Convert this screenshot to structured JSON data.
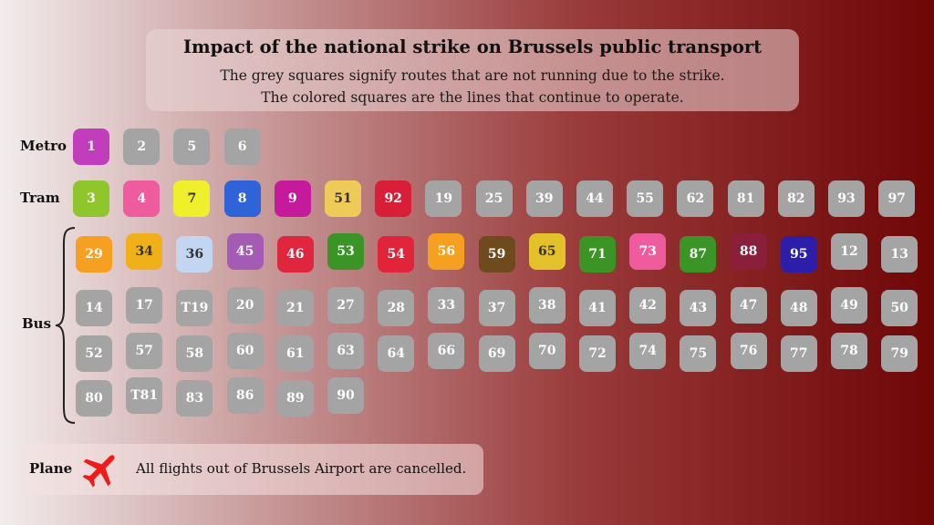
{
  "header": {
    "title": "Impact of the national strike on Brussels public transport",
    "subtitle_1": "The grey squares signify routes that are not running due to the strike.",
    "subtitle_2": "The colored squares are the lines that continue to operate."
  },
  "labels": {
    "metro": "Metro",
    "tram": "Tram",
    "bus": "Bus"
  },
  "colors": {
    "not_running": "#a4a4a4"
  },
  "metro": [
    {
      "line": "1",
      "status": "running",
      "color": "#c13dbb"
    },
    {
      "line": "2",
      "status": "not_running"
    },
    {
      "line": "5",
      "status": "not_running"
    },
    {
      "line": "6",
      "status": "not_running"
    }
  ],
  "tram": [
    {
      "line": "3",
      "status": "running",
      "color": "#8ec62b"
    },
    {
      "line": "4",
      "status": "running",
      "color": "#ee5c9e"
    },
    {
      "line": "7",
      "status": "running",
      "color": "#f0ef2b",
      "text": "dark"
    },
    {
      "line": "8",
      "status": "running",
      "color": "#2f63d8"
    },
    {
      "line": "9",
      "status": "running",
      "color": "#c51a9b"
    },
    {
      "line": "51",
      "status": "running",
      "color": "#eecb58",
      "text": "dark"
    },
    {
      "line": "92",
      "status": "running",
      "color": "#d81f37"
    },
    {
      "line": "19",
      "status": "not_running"
    },
    {
      "line": "25",
      "status": "not_running"
    },
    {
      "line": "39",
      "status": "not_running"
    },
    {
      "line": "44",
      "status": "not_running"
    },
    {
      "line": "55",
      "status": "not_running"
    },
    {
      "line": "62",
      "status": "not_running"
    },
    {
      "line": "81",
      "status": "not_running"
    },
    {
      "line": "82",
      "status": "not_running"
    },
    {
      "line": "93",
      "status": "not_running"
    },
    {
      "line": "97",
      "status": "not_running"
    }
  ],
  "bus": [
    {
      "line": "29",
      "status": "running",
      "color": "#f5a021"
    },
    {
      "line": "34",
      "status": "running",
      "color": "#f0b01a",
      "text": "dark"
    },
    {
      "line": "36",
      "status": "running",
      "color": "#c2d6f2",
      "text": "dark"
    },
    {
      "line": "45",
      "status": "running",
      "color": "#a35bb3"
    },
    {
      "line": "46",
      "status": "running",
      "color": "#e0263c"
    },
    {
      "line": "53",
      "status": "running",
      "color": "#3a9426"
    },
    {
      "line": "54",
      "status": "running",
      "color": "#e0243a"
    },
    {
      "line": "56",
      "status": "running",
      "color": "#f5a021"
    },
    {
      "line": "59",
      "status": "running",
      "color": "#6e4a1c"
    },
    {
      "line": "65",
      "status": "running",
      "color": "#e3c12a",
      "text": "dark"
    },
    {
      "line": "71",
      "status": "running",
      "color": "#3a9426"
    },
    {
      "line": "73",
      "status": "running",
      "color": "#ee5c9e"
    },
    {
      "line": "87",
      "status": "running",
      "color": "#3a9426"
    },
    {
      "line": "88",
      "status": "running",
      "color": "#8a1f3c"
    },
    {
      "line": "95",
      "status": "running",
      "color": "#2c1ea8"
    },
    {
      "line": "12",
      "status": "not_running"
    },
    {
      "line": "13",
      "status": "not_running"
    },
    {
      "line": "14",
      "status": "not_running"
    },
    {
      "line": "17",
      "status": "not_running"
    },
    {
      "line": "T19",
      "status": "not_running"
    },
    {
      "line": "20",
      "status": "not_running"
    },
    {
      "line": "21",
      "status": "not_running"
    },
    {
      "line": "27",
      "status": "not_running"
    },
    {
      "line": "28",
      "status": "not_running"
    },
    {
      "line": "33",
      "status": "not_running"
    },
    {
      "line": "37",
      "status": "not_running"
    },
    {
      "line": "38",
      "status": "not_running"
    },
    {
      "line": "41",
      "status": "not_running"
    },
    {
      "line": "42",
      "status": "not_running"
    },
    {
      "line": "43",
      "status": "not_running"
    },
    {
      "line": "47",
      "status": "not_running"
    },
    {
      "line": "48",
      "status": "not_running"
    },
    {
      "line": "49",
      "status": "not_running"
    },
    {
      "line": "50",
      "status": "not_running"
    },
    {
      "line": "52",
      "status": "not_running"
    },
    {
      "line": "57",
      "status": "not_running"
    },
    {
      "line": "58",
      "status": "not_running"
    },
    {
      "line": "60",
      "status": "not_running"
    },
    {
      "line": "61",
      "status": "not_running"
    },
    {
      "line": "63",
      "status": "not_running"
    },
    {
      "line": "64",
      "status": "not_running"
    },
    {
      "line": "66",
      "status": "not_running"
    },
    {
      "line": "69",
      "status": "not_running"
    },
    {
      "line": "70",
      "status": "not_running"
    },
    {
      "line": "72",
      "status": "not_running"
    },
    {
      "line": "74",
      "status": "not_running"
    },
    {
      "line": "75",
      "status": "not_running"
    },
    {
      "line": "76",
      "status": "not_running"
    },
    {
      "line": "77",
      "status": "not_running"
    },
    {
      "line": "78",
      "status": "not_running"
    },
    {
      "line": "79",
      "status": "not_running"
    },
    {
      "line": "80",
      "status": "not_running"
    },
    {
      "line": "T81",
      "status": "not_running"
    },
    {
      "line": "83",
      "status": "not_running"
    },
    {
      "line": "86",
      "status": "not_running"
    },
    {
      "line": "89",
      "status": "not_running"
    },
    {
      "line": "90",
      "status": "not_running"
    }
  ],
  "plane": {
    "label": "Plane",
    "icon": "plane-icon",
    "icon_color": "#ee1b1b",
    "text": "All flights out of Brussels Airport are cancelled."
  }
}
